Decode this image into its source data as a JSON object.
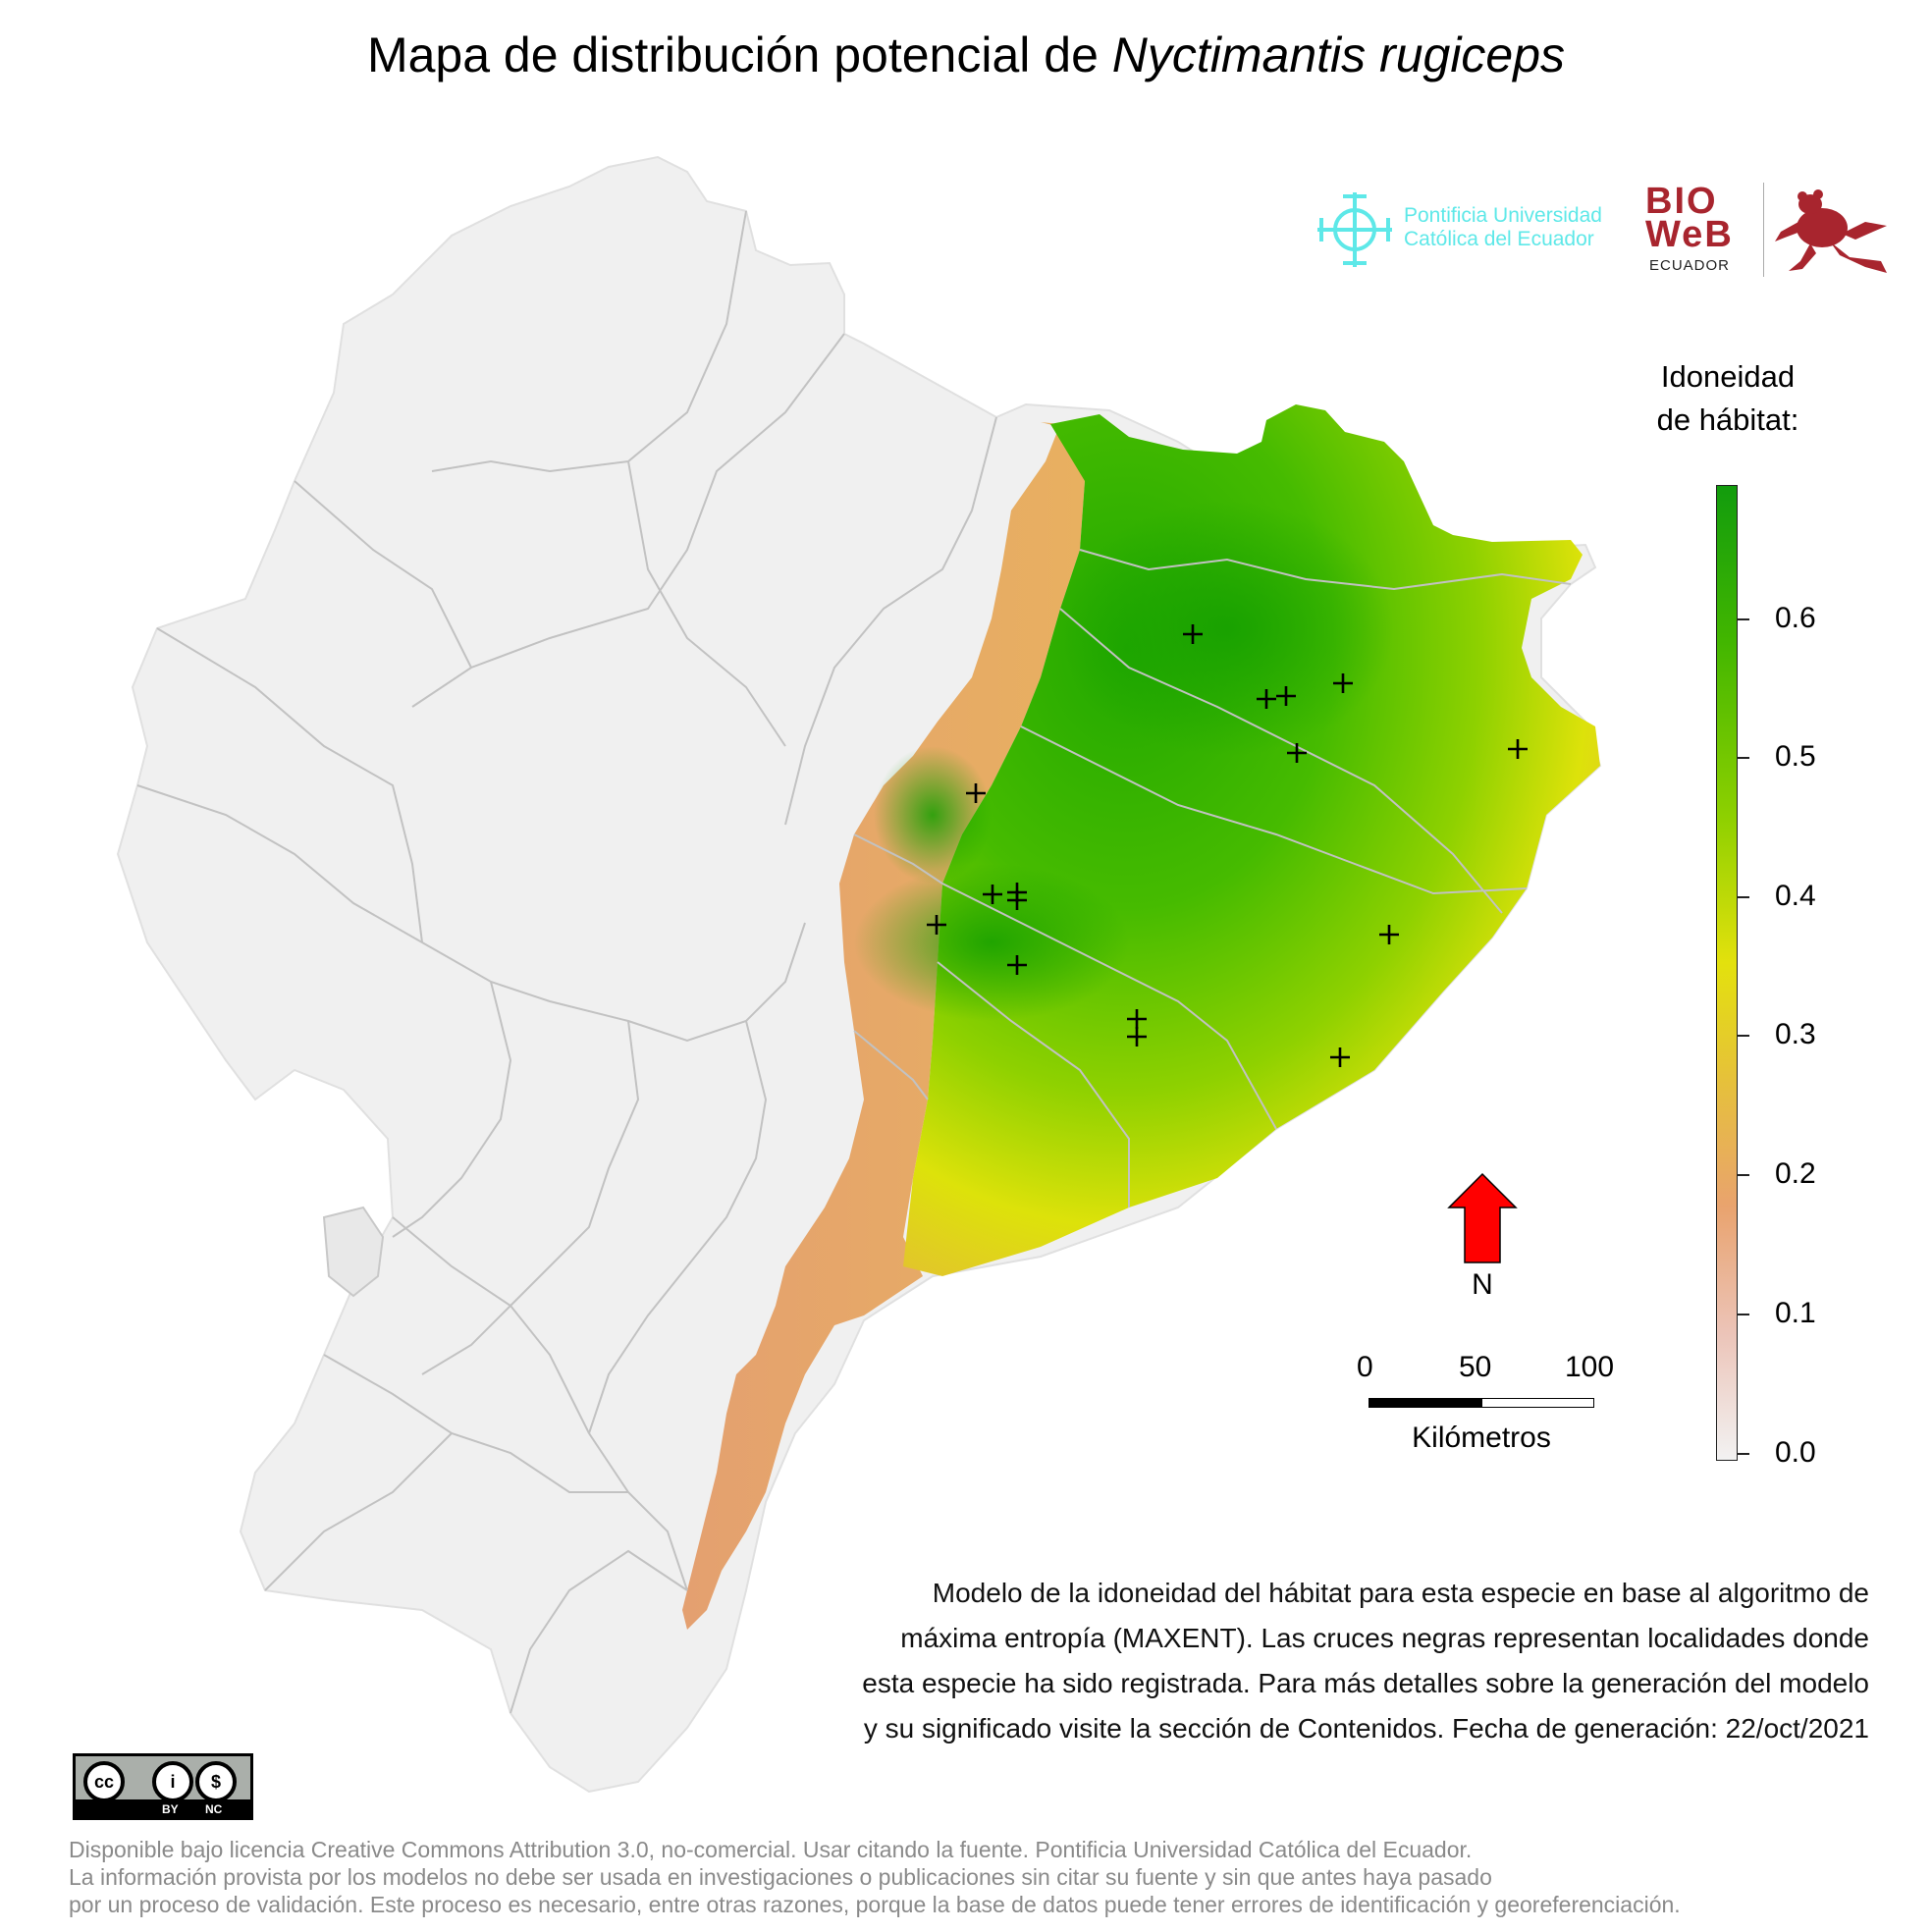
{
  "title": {
    "prefix": "Mapa de distribución potencial de ",
    "species": "Nyctimantis rugiceps"
  },
  "logos": {
    "puce_line1": "Pontificia Universidad",
    "puce_line2": "Católica del Ecuador",
    "bioweb_line1": "BIO",
    "bioweb_line2": "WeB",
    "bioweb_sub": "ECUADOR"
  },
  "legend": {
    "title_line1": "Idoneidad",
    "title_line2": "de hábitat:",
    "ticks": [
      "0.6",
      "0.5",
      "0.4",
      "0.3",
      "0.2",
      "0.1",
      "0.0"
    ],
    "colors": [
      "#f2f2f2",
      "#ecc4b8",
      "#e9a36e",
      "#e6c13a",
      "#e3e10d",
      "#8ed000",
      "#42b600",
      "#129c0d"
    ]
  },
  "north_arrow": {
    "label": "N",
    "color": "#ff0000"
  },
  "scale": {
    "labels": [
      "0",
      "50",
      "100"
    ],
    "unit": "Kilómetros"
  },
  "description": [
    "Modelo de la idoneidad del hábitat para esta especie en base al algoritmo de",
    "máxima entropía (MAXENT). Las cruces negras representan localidades donde",
    "esta especie ha sido registrada. Para más detalles sobre la generación del modelo",
    "y su significado visite la sección de Contenidos. Fecha de generación: 22/oct/2021"
  ],
  "license_badge": {
    "by": "BY",
    "nc": "NC"
  },
  "footer": [
    "Disponible bajo licencia Creative Commons Attribution 3.0, no-comercial. Usar citando la fuente. Pontificia Universidad Católica del Ecuador.",
    "La información provista por los modelos no debe ser usada en investigaciones o publicaciones sin citar su fuente y sin que antes haya pasado",
    "por un proceso de validación. Este proceso es necesario, entre otras razones, porque la base de datos puede tener errores de identificación y georeferenciación."
  ]
}
